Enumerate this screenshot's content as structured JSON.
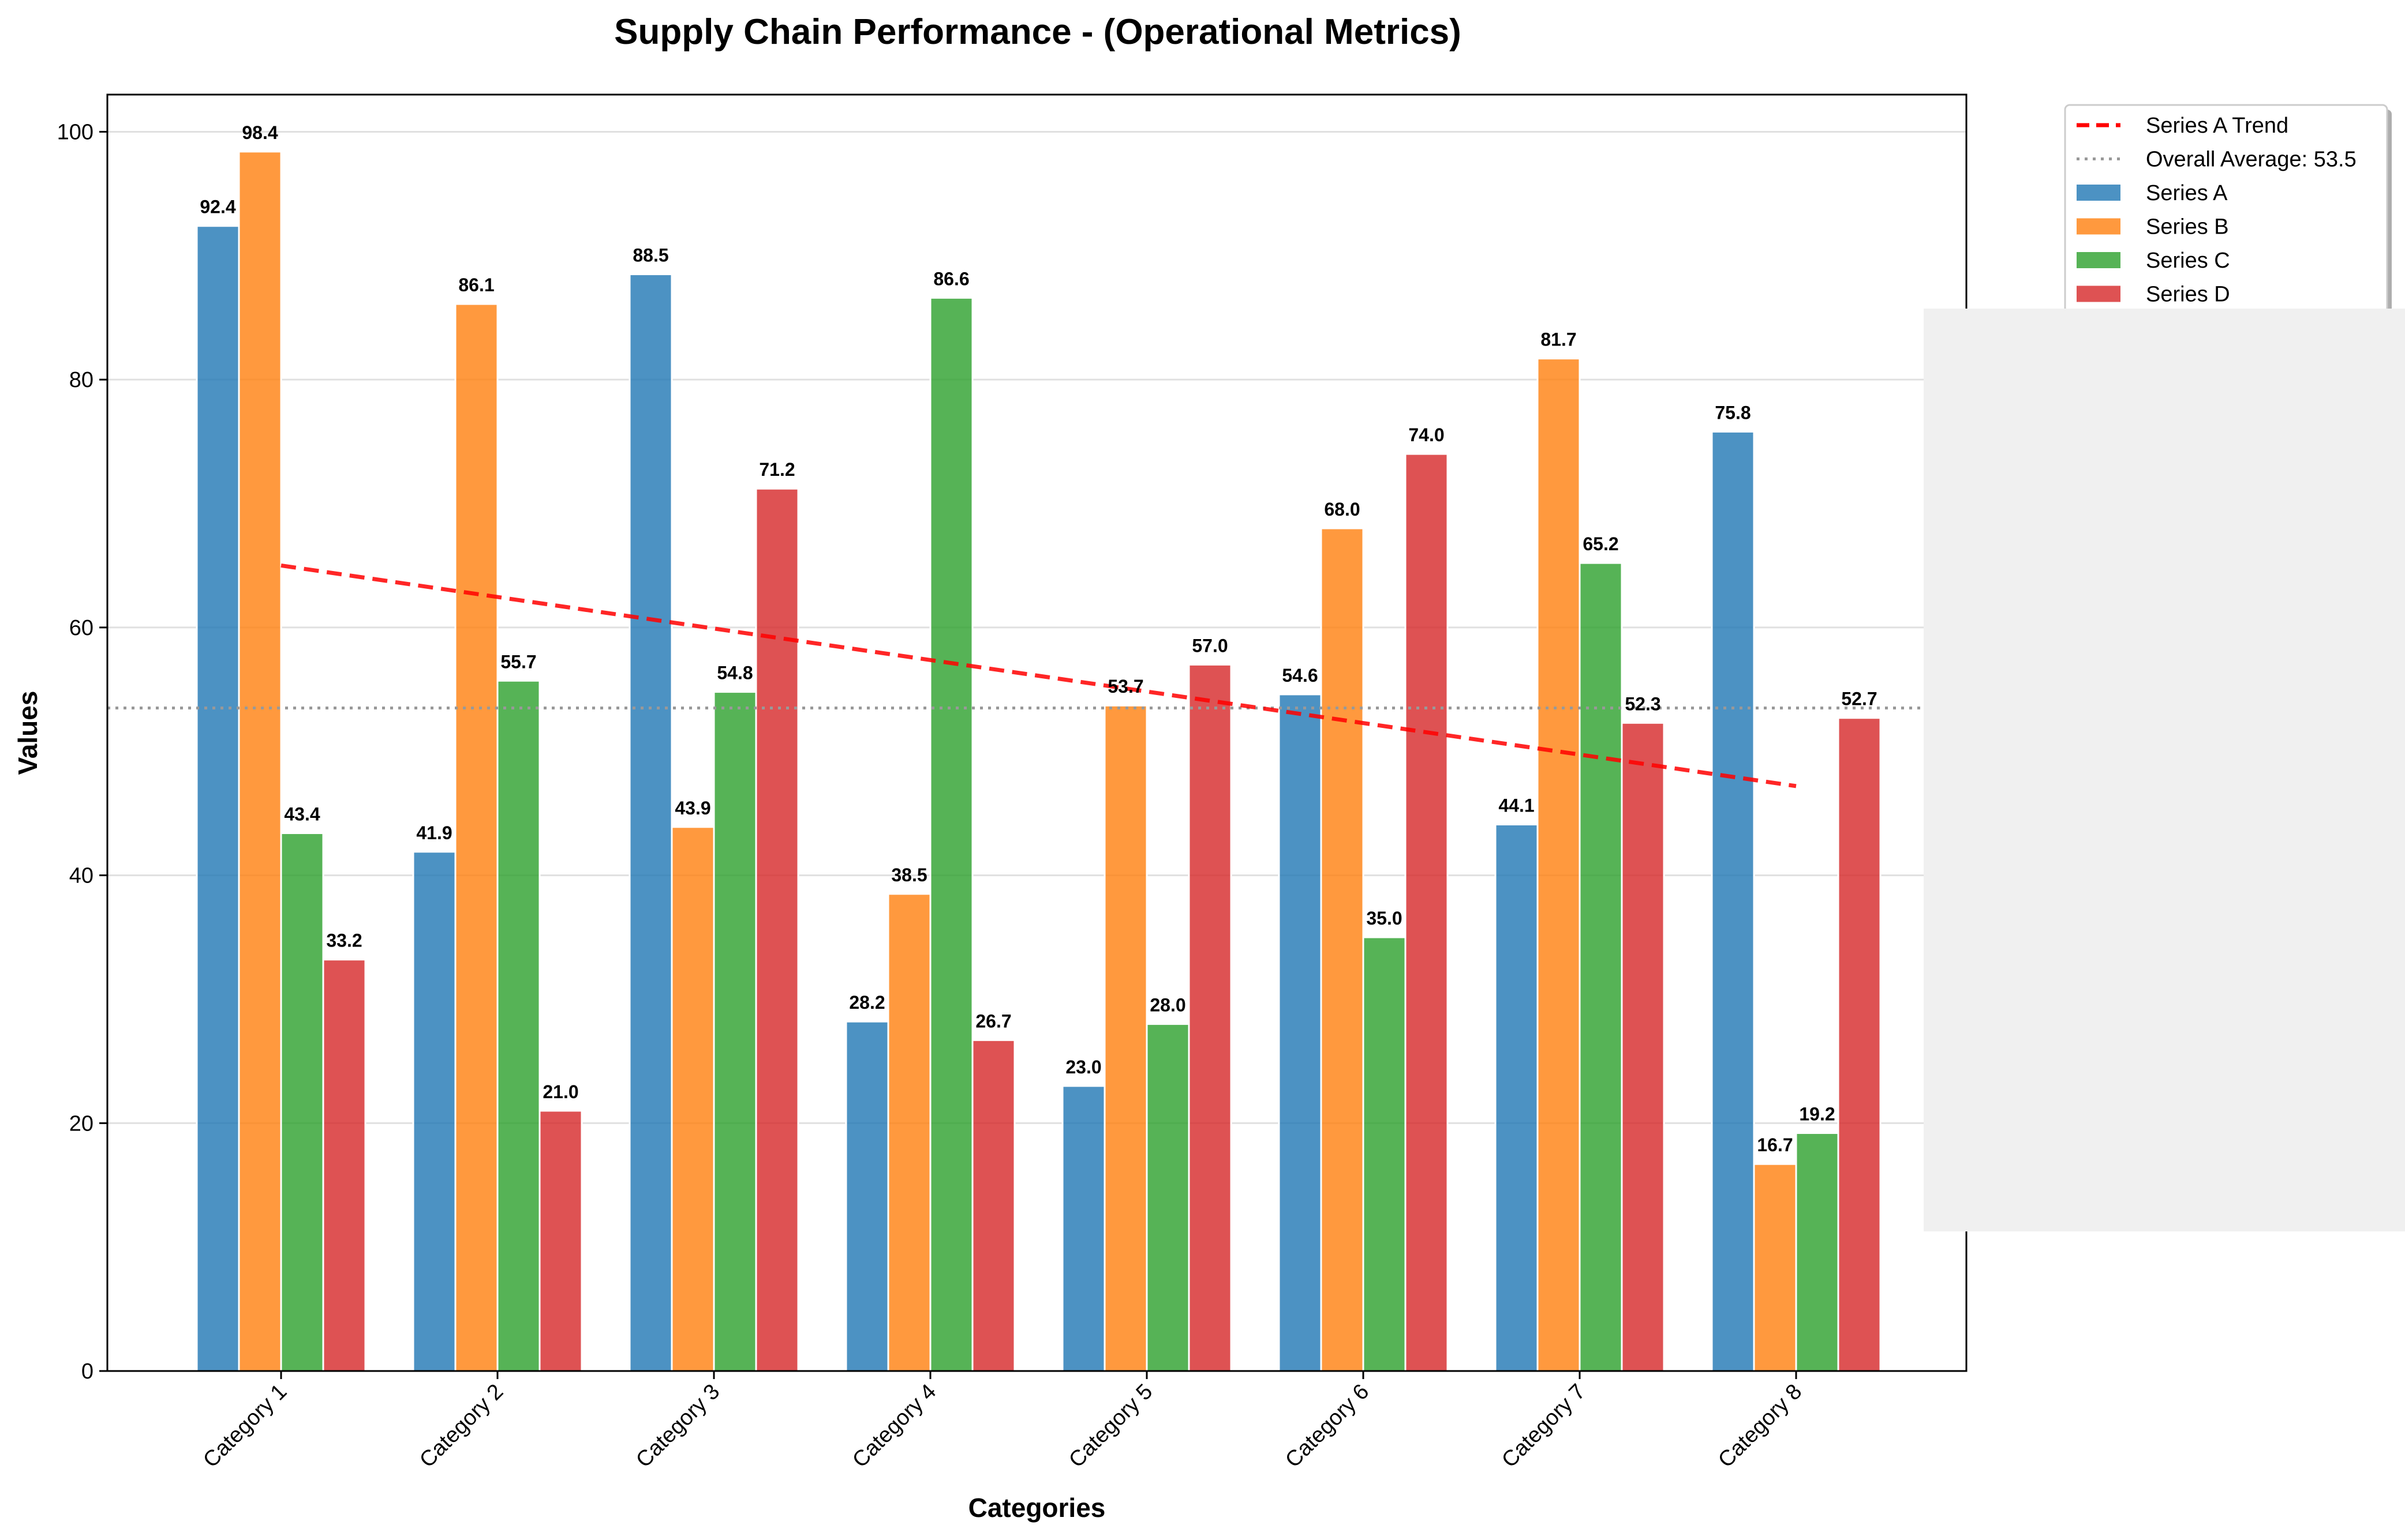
{
  "chart_data": {
    "type": "bar",
    "title": "Supply Chain Performance - (Operational Metrics)",
    "xlabel": "Categories",
    "ylabel": "Values",
    "ylim": [
      0,
      103
    ],
    "yticks": [
      "0",
      "20",
      "40",
      "60",
      "80",
      "100"
    ],
    "grid": "horizontal",
    "legend_position": "top-right",
    "categories": [
      "Category 1",
      "Category 2",
      "Category 3",
      "Category 4",
      "Category 5",
      "Category 6",
      "Category 7",
      "Category 8"
    ],
    "series": [
      {
        "name": "Series A",
        "color": "#1f77b4",
        "values": [
          92.4,
          41.9,
          88.5,
          28.2,
          23.0,
          54.6,
          44.1,
          75.8
        ],
        "labels": [
          "92.4",
          "41.9",
          "88.5",
          "28.2",
          "23.0",
          "54.6",
          "44.1",
          "75.8"
        ]
      },
      {
        "name": "Series B",
        "color": "#ff7f0e",
        "values": [
          98.4,
          86.1,
          43.9,
          38.5,
          53.7,
          68.0,
          81.7,
          16.7
        ],
        "labels": [
          "98.4",
          "86.1",
          "43.9",
          "38.5",
          "53.7",
          "68.0",
          "81.7",
          "16.7"
        ]
      },
      {
        "name": "Series C",
        "color": "#2ca02c",
        "values": [
          43.4,
          55.7,
          54.8,
          86.6,
          28.0,
          35.0,
          65.2,
          19.2
        ],
        "labels": [
          "43.4",
          "55.7",
          "54.8",
          "86.6",
          "28.0",
          "35.0",
          "65.2",
          "19.2"
        ]
      },
      {
        "name": "Series D",
        "color": "#d62728",
        "values": [
          33.2,
          21.0,
          71.2,
          26.7,
          57.0,
          74.0,
          52.3,
          52.7
        ],
        "labels": [
          "33.2",
          "21.0",
          "71.2",
          "26.7",
          "57.0",
          "74.0",
          "52.3",
          "52.7"
        ]
      }
    ],
    "trend_line": {
      "name": "Series A Trend",
      "color": "#ff0000",
      "style": "dashed",
      "start": 65.0,
      "end": 47.2
    },
    "average_line": {
      "name": "Overall Average: 53.5",
      "value": 53.5,
      "color": "#999999",
      "style": "dotted"
    }
  }
}
